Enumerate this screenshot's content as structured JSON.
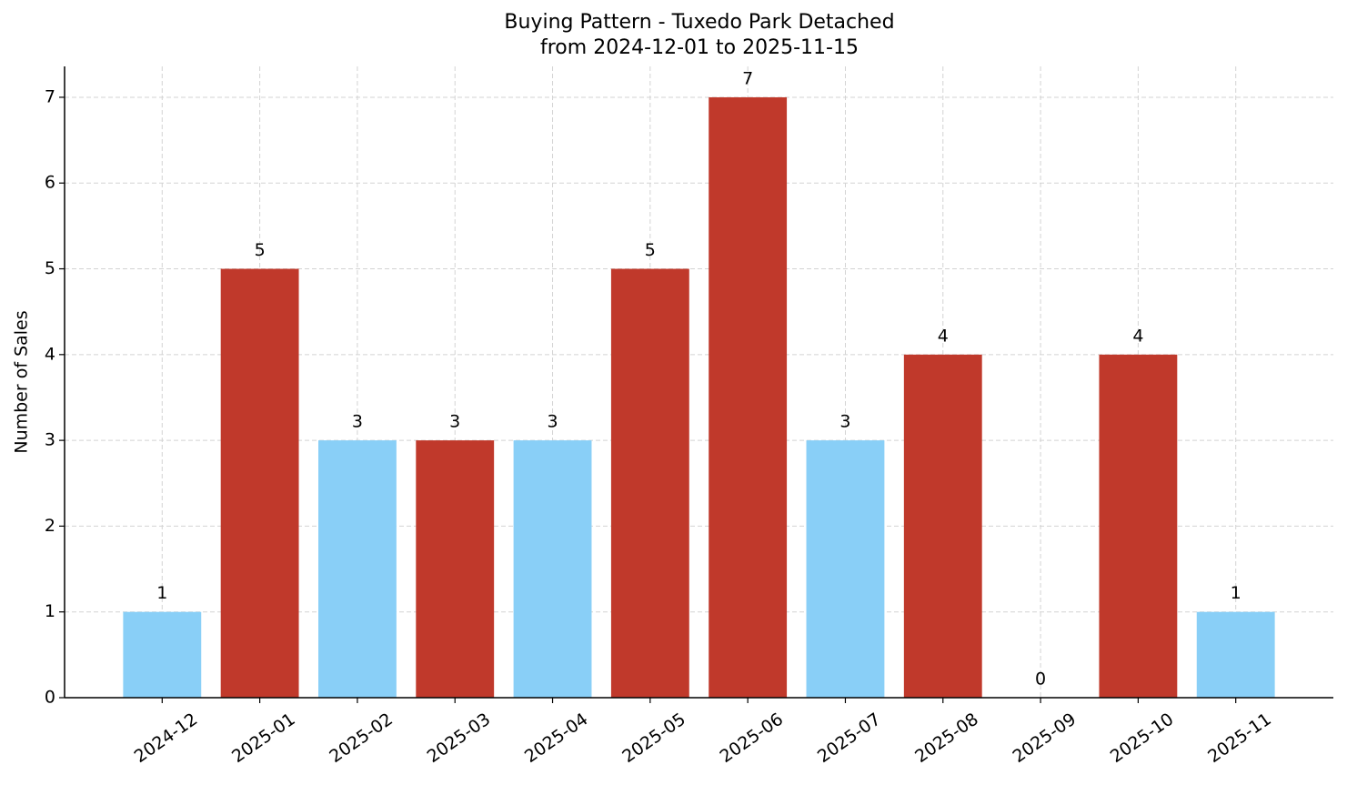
{
  "chart_data": {
    "type": "bar",
    "title": "Buying Pattern - Tuxedo Park Detached",
    "subtitle": "from 2024-12-01 to 2025-11-15",
    "y_label": "Number of Sales",
    "categories": [
      "2024-12",
      "2025-01",
      "2025-02",
      "2025-03",
      "2025-04",
      "2025-05",
      "2025-06",
      "2025-07",
      "2025-08",
      "2025-09",
      "2025-10",
      "2025-11"
    ],
    "values": [
      1,
      5,
      3,
      3,
      3,
      5,
      7,
      3,
      4,
      0,
      4,
      1
    ],
    "colors": [
      "#89cff7",
      "#c0392b",
      "#89cff7",
      "#c0392b",
      "#89cff7",
      "#c0392b",
      "#c0392b",
      "#89cff7",
      "#c0392b",
      "#89cff7",
      "#c0392b",
      "#89cff7"
    ],
    "ylim": [
      0,
      7.36
    ],
    "yticks": [
      0,
      1,
      2,
      3,
      4,
      5,
      6,
      7
    ],
    "grid": true
  }
}
